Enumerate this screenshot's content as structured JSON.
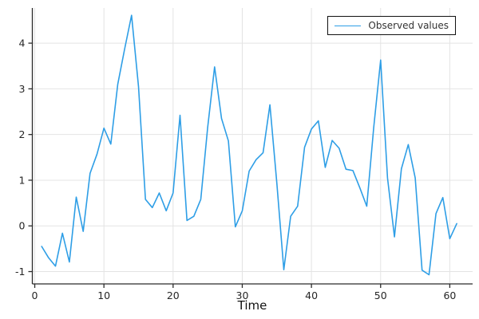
{
  "chart_data": {
    "type": "line",
    "title": "",
    "xlabel": "Time",
    "ylabel": "",
    "legend_position": "top-right",
    "grid": true,
    "xlim": [
      -0.35,
      63.3
    ],
    "ylim": [
      -1.27,
      4.77
    ],
    "xticks": [
      0,
      10,
      20,
      30,
      40,
      50,
      60
    ],
    "yticks": [
      -1,
      0,
      1,
      2,
      3,
      4
    ],
    "x": [
      1,
      2,
      3,
      4,
      5,
      6,
      7,
      8,
      9,
      10,
      11,
      12,
      13,
      14,
      15,
      16,
      17,
      18,
      19,
      20,
      21,
      22,
      23,
      24,
      25,
      26,
      27,
      28,
      29,
      30,
      31,
      32,
      33,
      34,
      35,
      36,
      37,
      38,
      39,
      40,
      41,
      42,
      43,
      44,
      45,
      46,
      47,
      48,
      49,
      50,
      51,
      52,
      53,
      54,
      55,
      56,
      57,
      58,
      59,
      60,
      61
    ],
    "series": [
      {
        "name": "Observed values",
        "color": "#2E9EE6",
        "values": [
          -0.45,
          -0.7,
          -0.88,
          -0.16,
          -0.79,
          0.63,
          -0.12,
          1.15,
          1.57,
          2.14,
          1.79,
          3.1,
          3.88,
          4.61,
          3.05,
          0.58,
          0.4,
          0.72,
          0.33,
          0.72,
          2.42,
          0.12,
          0.21,
          0.58,
          2.15,
          3.48,
          2.35,
          1.86,
          -0.02,
          0.33,
          1.2,
          1.45,
          1.6,
          2.65,
          0.93,
          -0.96,
          0.21,
          0.43,
          1.72,
          2.12,
          2.3,
          1.28,
          1.87,
          1.7,
          1.24,
          1.21,
          0.83,
          0.43,
          2.15,
          3.63,
          1.05,
          -0.24,
          1.25,
          1.78,
          1.05,
          -0.97,
          -1.07,
          0.27,
          0.62,
          -0.28,
          0.05
        ]
      }
    ],
    "colors": {
      "grid": "#E4E4E4",
      "spine": "#2B2B2B",
      "tick_label": "#262626",
      "background": "#FFFFFF"
    }
  }
}
